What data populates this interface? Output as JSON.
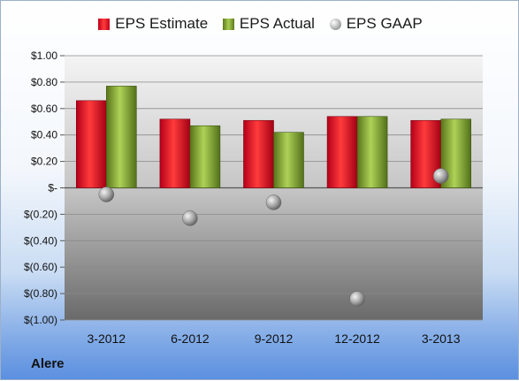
{
  "company": "Alere",
  "colors": {
    "estimate": "#e5202a",
    "actual": "#8db33f",
    "gaap": "#9a9a9a"
  },
  "chart_data": {
    "type": "bar",
    "categories": [
      "3-2012",
      "6-2012",
      "9-2012",
      "12-2012",
      "3-2013"
    ],
    "series": [
      {
        "name": "EPS Estimate",
        "kind": "bar",
        "values": [
          0.66,
          0.52,
          0.51,
          0.54,
          0.51
        ]
      },
      {
        "name": "EPS Actual",
        "kind": "bar",
        "values": [
          0.77,
          0.47,
          0.42,
          0.54,
          0.52
        ]
      },
      {
        "name": "EPS GAAP",
        "kind": "marker",
        "values": [
          -0.05,
          -0.23,
          -0.11,
          -0.84,
          0.09
        ]
      }
    ],
    "ylim": [
      -1.0,
      1.0
    ],
    "yticks": [
      1.0,
      0.8,
      0.6,
      0.4,
      0.2,
      0,
      -0.2,
      -0.4,
      -0.6,
      -0.8,
      -1.0
    ],
    "ytick_labels": [
      "$1.00",
      "$0.80",
      "$0.60",
      "$0.40",
      "$0.20",
      "$-",
      "$(0.20)",
      "$(0.40)",
      "$(0.60)",
      "$(0.80)",
      "$(1.00)"
    ],
    "legend_position": "top",
    "grid": true
  }
}
